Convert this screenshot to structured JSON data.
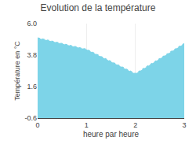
{
  "chart_data": {
    "type": "area",
    "title": "Evolution de la température",
    "xlabel": "heure par heure",
    "ylabel": "Température en °C",
    "x": [
      0,
      1,
      2,
      3
    ],
    "values": [
      5.0,
      4.2,
      2.5,
      4.6
    ],
    "color": "#7dd4e8",
    "line_style": "dotted",
    "xlim": [
      0,
      3
    ],
    "xticks": [
      0,
      1,
      2,
      3
    ],
    "ylim": [
      -0.6,
      6.0
    ],
    "yticks": [
      -0.6,
      1.6,
      3.8,
      {
        "value": 6.0,
        "label": "6.0"
      }
    ],
    "grid": "x"
  }
}
